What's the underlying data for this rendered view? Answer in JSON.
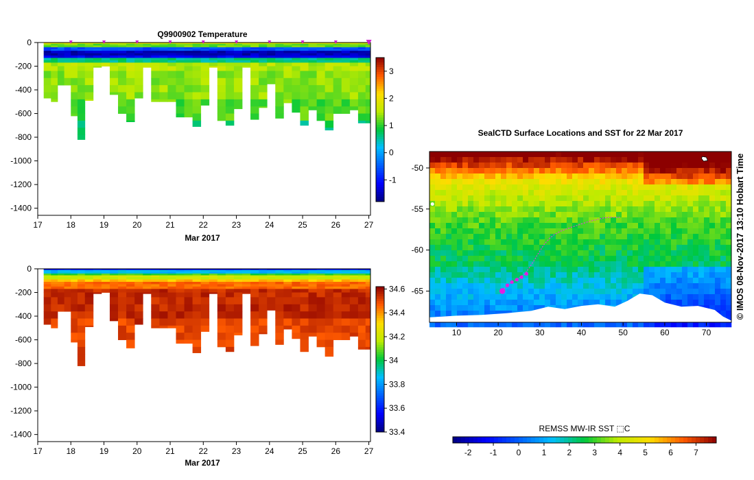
{
  "chart_data": [
    {
      "type": "heatmap",
      "name": "temperature-profile",
      "title": "Q9900902  Temperature",
      "xlabel": "Mar 2017",
      "ylabel": "",
      "x_ticks": [
        "17",
        "18",
        "19",
        "20",
        "21",
        "22",
        "23",
        "24",
        "25",
        "26",
        "27"
      ],
      "xlim": [
        17,
        27.05
      ],
      "y_ticks": [
        "0",
        "-200",
        "-400",
        "-600",
        "-800",
        "-1000",
        "-1200",
        "-1400"
      ],
      "ylim": [
        -1460,
        0
      ],
      "colorbar_ticks": [
        "-1",
        "0",
        "1",
        "2",
        "3"
      ],
      "colorbar_range": [
        -1.8,
        3.5
      ],
      "profile_day": [
        17.3,
        17.5,
        17.7,
        17.9,
        18.1,
        18.3,
        18.55,
        18.8,
        19.05,
        19.3,
        19.55,
        19.8,
        20.05,
        20.3,
        20.55,
        20.8,
        21.05,
        21.3,
        21.55,
        21.8,
        22.05,
        22.3,
        22.55,
        22.8,
        23.05,
        23.3,
        23.55,
        23.8,
        24.05,
        24.3,
        24.55,
        24.8,
        25.05,
        25.3,
        25.55,
        25.8,
        26.05,
        26.3,
        26.55,
        26.8,
        27.0
      ],
      "profile_max_depth": [
        470,
        500,
        360,
        360,
        620,
        820,
        490,
        210,
        200,
        440,
        600,
        670,
        470,
        210,
        500,
        500,
        500,
        630,
        630,
        710,
        530,
        210,
        660,
        700,
        560,
        210,
        650,
        550,
        350,
        640,
        510,
        590,
        700,
        570,
        660,
        740,
        600,
        600,
        570,
        680,
        680
      ],
      "surface_marker_days": [
        18,
        19,
        20,
        21,
        22,
        23,
        24,
        25,
        26,
        27
      ],
      "values_description": "Temperature (C): ~-1.5 at 80-150 m (blue), ~1.3-1.8 below 200 m (green-yellow), ~2 near surface"
    },
    {
      "type": "heatmap",
      "name": "salinity-profile",
      "title": "",
      "xlabel": "Mar 2017",
      "ylabel": "",
      "x_ticks": [
        "17",
        "18",
        "19",
        "20",
        "21",
        "22",
        "23",
        "24",
        "25",
        "26",
        "27"
      ],
      "xlim": [
        17,
        27.05
      ],
      "y_ticks": [
        "0",
        "-200",
        "-400",
        "-600",
        "-800",
        "-1000",
        "-1200",
        "-1400"
      ],
      "ylim": [
        -1460,
        0
      ],
      "colorbar_ticks": [
        "33.4",
        "33.6",
        "33.8",
        "34",
        "34.2",
        "34.4",
        "34.6"
      ],
      "colorbar_range": [
        33.4,
        34.62
      ],
      "profile_day": [
        17.3,
        17.5,
        17.7,
        17.9,
        18.1,
        18.3,
        18.55,
        18.8,
        19.05,
        19.3,
        19.55,
        19.8,
        20.05,
        20.3,
        20.55,
        20.8,
        21.05,
        21.3,
        21.55,
        21.8,
        22.05,
        22.3,
        22.55,
        22.8,
        23.05,
        23.3,
        23.55,
        23.8,
        24.05,
        24.3,
        24.55,
        24.8,
        25.05,
        25.3,
        25.55,
        25.8,
        26.05,
        26.3,
        26.55,
        26.8,
        27.0
      ],
      "profile_max_depth": [
        470,
        500,
        360,
        360,
        620,
        820,
        490,
        210,
        200,
        440,
        600,
        670,
        470,
        210,
        500,
        500,
        500,
        630,
        630,
        710,
        530,
        210,
        660,
        700,
        560,
        210,
        650,
        550,
        350,
        640,
        510,
        590,
        700,
        570,
        660,
        740,
        600,
        600,
        570,
        680,
        680
      ],
      "values_description": "Salinity (PSU): ~33.8-34.0 near surface, ~34.5-34.6 below 200 m"
    },
    {
      "type": "heatmap",
      "name": "sst-map",
      "title": "SealCTD Surface Locations and SST for 22 Mar 2017",
      "xlabel": "",
      "ylabel": "",
      "x_ticks": [
        "10",
        "20",
        "30",
        "40",
        "50",
        "60",
        "70"
      ],
      "xlim": [
        3.5,
        76
      ],
      "y_ticks": [
        "-50",
        "-55",
        "-60",
        "-65"
      ],
      "ylim": [
        -68.8,
        -48
      ],
      "side_text": "© IMOS 08-Nov-2017 13:10 Hobart Time",
      "track_lon": [
        21.0,
        21.6,
        22.4,
        23.3,
        24.3,
        25.3,
        26.2,
        27.0,
        27.8,
        28.6,
        29.4,
        30.3,
        31.2,
        32.3,
        33.5,
        35.0,
        36.6,
        38.3,
        40.1,
        41.9,
        43.6,
        45.2,
        46.7,
        48.0,
        49.2
      ],
      "track_lat": [
        -65.0,
        -64.6,
        -64.2,
        -63.9,
        -63.6,
        -63.3,
        -63.0,
        -62.5,
        -61.9,
        -61.3,
        -60.6,
        -59.9,
        -59.2,
        -58.6,
        -58.1,
        -57.7,
        -57.4,
        -57.1,
        -56.8,
        -56.5,
        -56.3,
        -56.1,
        -56.0,
        -56.0,
        -56.0
      ],
      "track_marker_lon": [
        22.2,
        23.3,
        24.5,
        25.6,
        26.8
      ],
      "track_marker_lat": [
        -64.3,
        -63.9,
        -63.6,
        -63.3,
        -62.9
      ],
      "latest_position": [
        21.0,
        -65.0
      ],
      "colorbar_label": "REMSS MW-IR SST ⬚C",
      "colorbar_ticks": [
        "-2",
        "-1",
        "0",
        "1",
        "2",
        "3",
        "4",
        "5",
        "6",
        "7"
      ],
      "colorbar_range": [
        -2.6,
        7.8
      ]
    }
  ]
}
